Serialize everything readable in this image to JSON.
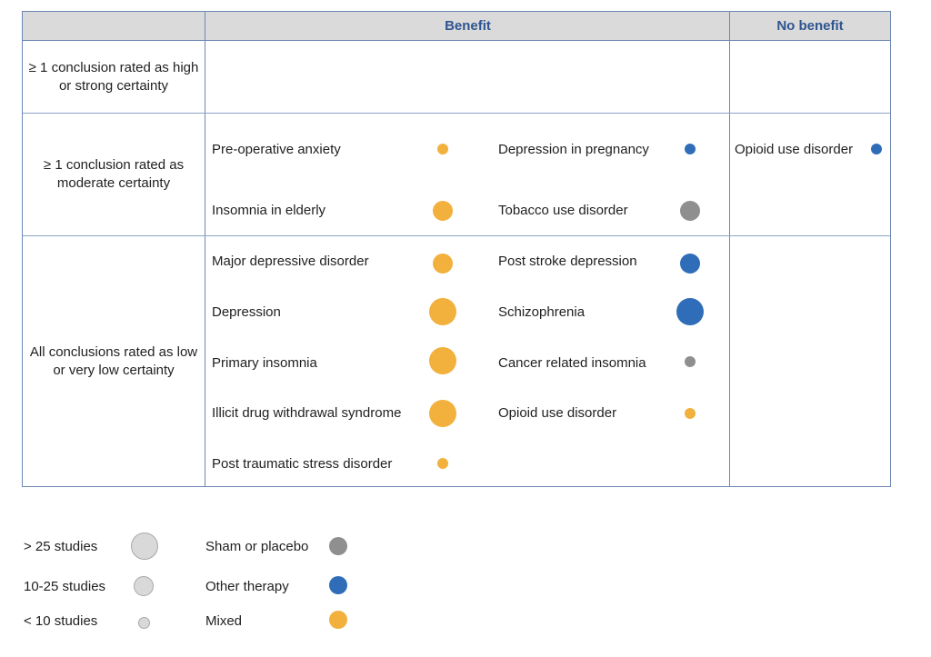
{
  "header": {
    "col_benefit": "Benefit",
    "col_no_benefit": "No benefit"
  },
  "rows": [
    {
      "label": "≥ 1 conclusion rated as high or strong certainty"
    },
    {
      "label": "≥ 1 conclusion rated as moderate certainty"
    },
    {
      "label": "All conclusions rated as low or very low certainty"
    }
  ],
  "items": {
    "preop_anxiety": {
      "label": "Pre-operative anxiety",
      "size": "< 10 studies",
      "type": "Mixed"
    },
    "depression_pregnancy": {
      "label": "Depression in pregnancy",
      "size": "< 10 studies",
      "type": "Other therapy"
    },
    "opioid_no_benefit": {
      "label": "Opioid use disorder",
      "size": "< 10 studies",
      "type": "Other therapy"
    },
    "insomnia_elderly": {
      "label": "Insomnia in elderly",
      "size": "10-25 studies",
      "type": "Mixed"
    },
    "tobacco": {
      "label": "Tobacco use disorder",
      "size": "10-25 studies",
      "type": "Sham or placebo"
    },
    "mdd": {
      "label": "Major depressive disorder",
      "size": "10-25 studies",
      "type": "Mixed"
    },
    "post_stroke": {
      "label": "Post stroke depression",
      "size": "10-25 studies",
      "type": "Other therapy"
    },
    "depression": {
      "label": "Depression",
      "size": "> 25 studies",
      "type": "Mixed"
    },
    "schizophrenia": {
      "label": "Schizophrenia",
      "size": "> 25 studies",
      "type": "Other therapy"
    },
    "primary_insomnia": {
      "label": "Primary insomnia",
      "size": "> 25 studies",
      "type": "Mixed"
    },
    "cancer_insomnia": {
      "label": "Cancer related insomnia",
      "size": "< 10 studies",
      "type": "Sham or placebo"
    },
    "illicit_drug": {
      "label": "Illicit drug withdrawal syndrome",
      "size": "> 25 studies",
      "type": "Mixed"
    },
    "opioid_benefit": {
      "label": "Opioid use disorder",
      "size": "< 10 studies",
      "type": "Mixed"
    },
    "ptsd": {
      "label": "Post traumatic stress disorder",
      "size": "< 10 studies",
      "type": "Mixed"
    }
  },
  "legend": {
    "sizes": [
      {
        "label": "> 25 studies"
      },
      {
        "label": "10-25 studies"
      },
      {
        "label": "< 10 studies"
      }
    ],
    "colors": [
      {
        "label": "Sham or placebo",
        "color": "#8f8f8f"
      },
      {
        "label": "Other therapy",
        "color": "#2f6db8"
      },
      {
        "label": "Mixed",
        "color": "#f2b03c"
      }
    ]
  }
}
